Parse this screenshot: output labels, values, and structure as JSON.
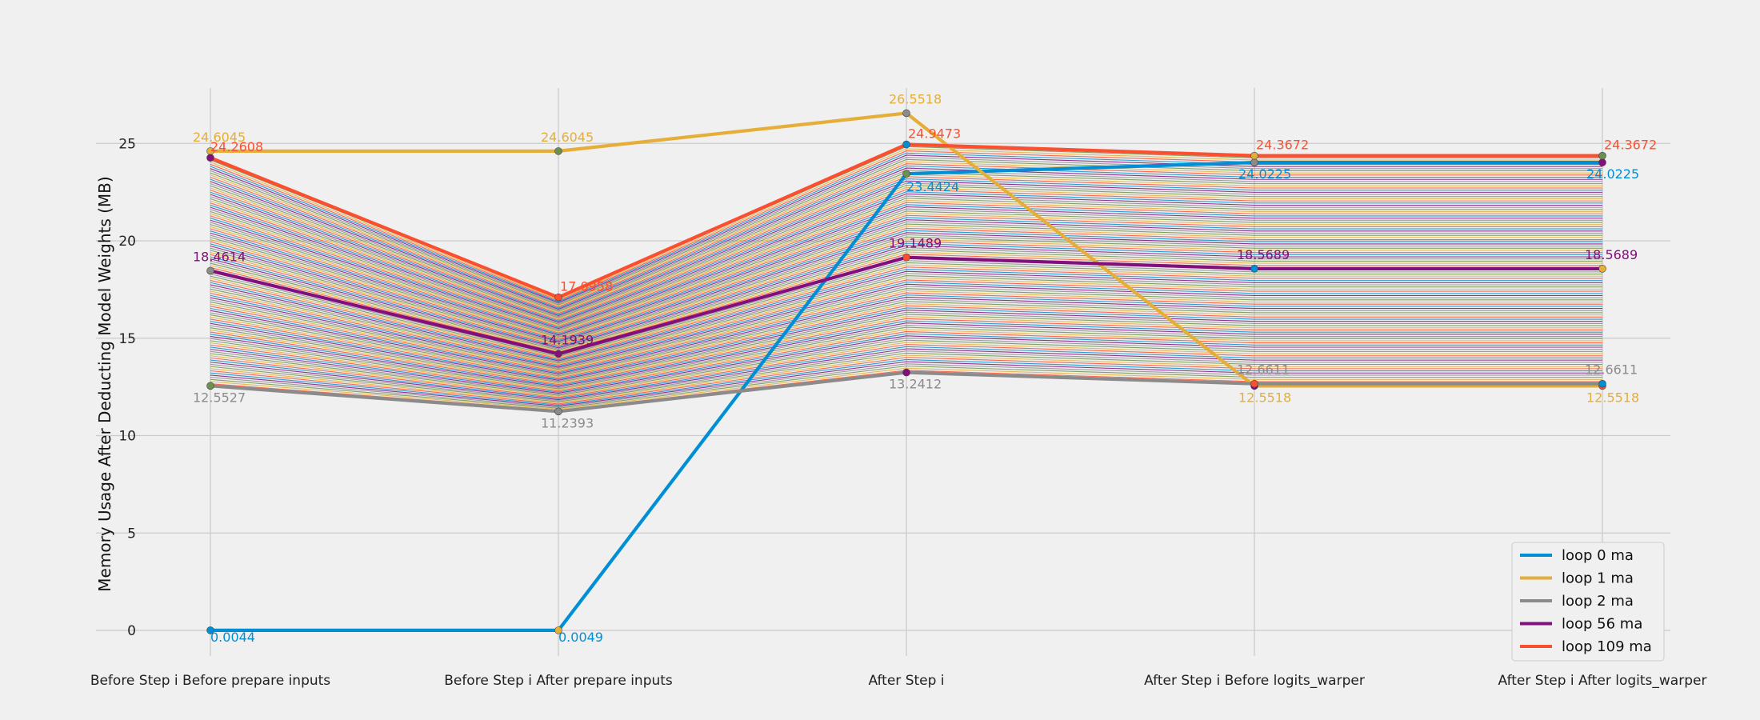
{
  "chart_data": {
    "type": "line",
    "title": "",
    "xlabel": "",
    "ylabel": "Memory Usage After Deducting Model Weights (MB)",
    "categories": [
      "Before Step i Before prepare inputs",
      "Before Step i After  prepare inputs",
      "After Step i",
      "After Step i Before logits_warper",
      "After Step i After  logits_warper"
    ],
    "ylim": [
      -2,
      28
    ],
    "yticks": [
      0,
      5,
      10,
      15,
      20,
      25
    ],
    "grid": true,
    "legend_position": "bottom-right",
    "series": [
      {
        "name": "loop 0 ma",
        "color": "#008fd5",
        "values": [
          0.0044,
          0.0049,
          23.4424,
          24.0225,
          24.0225
        ],
        "labels": [
          "0.0044",
          "0.0049",
          "23.4424",
          "24.0225",
          "24.0225"
        ]
      },
      {
        "name": "loop 1 ma",
        "color": "#e5ae38",
        "values": [
          24.6045,
          24.6045,
          26.5518,
          12.5518,
          12.5518
        ],
        "labels": [
          "24.6045",
          "24.6045",
          "26.5518",
          "12.5518",
          "12.5518"
        ]
      },
      {
        "name": "loop 2 ma",
        "color": "#8b8b8b",
        "values": [
          12.5527,
          11.2393,
          13.2412,
          12.6611,
          12.6611
        ],
        "labels": [
          "12.5527",
          "11.2393",
          "13.2412",
          "12.6611",
          "12.6611"
        ]
      },
      {
        "name": "loop 56 ma",
        "color": "#810f7c",
        "values": [
          18.4614,
          14.1939,
          19.1489,
          18.5689,
          18.5689
        ],
        "labels": [
          "18.4614",
          "14.1939",
          "19.1489",
          "18.5689",
          "18.5689"
        ]
      },
      {
        "name": "loop 109 ma",
        "color": "#fc4f30",
        "values": [
          24.2608,
          17.0958,
          24.9473,
          24.3672,
          24.3672
        ],
        "labels": [
          "24.2608",
          "17.0958",
          "24.9473",
          "24.3672",
          "24.3672"
        ]
      }
    ],
    "background_series": {
      "description_count": 106,
      "from": "loop 2 ma",
      "to": "loop 109 ma",
      "colors": [
        "#008fd5",
        "#fc4f30",
        "#e5ae38",
        "#6d904f",
        "#8b8b8b",
        "#810f7c"
      ]
    }
  }
}
